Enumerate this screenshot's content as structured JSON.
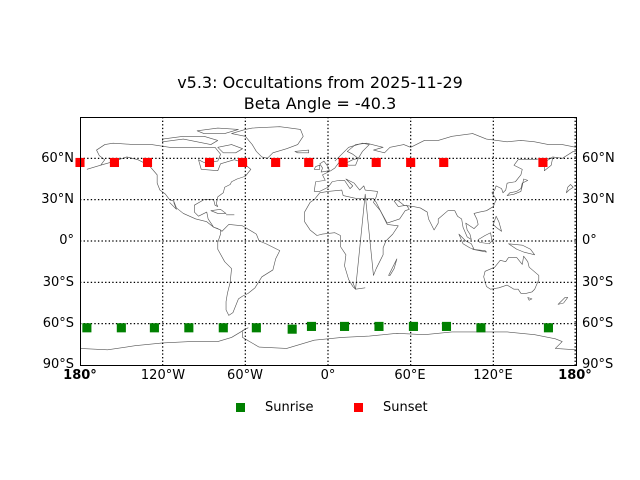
{
  "chart_data": {
    "type": "scatter",
    "title": "v5.3: Occultations from 2025-11-29",
    "subtitle": "Beta Angle = -40.3",
    "xlabel": "",
    "ylabel": "",
    "xlim": [
      -180,
      180
    ],
    "ylim": [
      -90,
      90
    ],
    "grid": true,
    "projection": "cylindrical world map with coastlines",
    "x_ticks": [
      "180°",
      "120°W",
      "60°W",
      "0°",
      "60°E",
      "120°E",
      "180°"
    ],
    "y_ticks": [
      "60°N",
      "30°N",
      "0°",
      "30°S",
      "60°S",
      "90°S"
    ],
    "legend_position": "below plot",
    "series": [
      {
        "name": "Sunrise",
        "color": "#008000",
        "marker": "square",
        "points": [
          {
            "lon": -175,
            "lat": -63
          },
          {
            "lon": -150,
            "lat": -63
          },
          {
            "lon": -126,
            "lat": -63
          },
          {
            "lon": -101,
            "lat": -63
          },
          {
            "lon": -76,
            "lat": -63
          },
          {
            "lon": -52,
            "lat": -63
          },
          {
            "lon": -26,
            "lat": -64
          },
          {
            "lon": -12,
            "lat": -62
          },
          {
            "lon": 12,
            "lat": -62
          },
          {
            "lon": 37,
            "lat": -62
          },
          {
            "lon": 62,
            "lat": -62
          },
          {
            "lon": 86,
            "lat": -62
          },
          {
            "lon": 111,
            "lat": -63
          },
          {
            "lon": 160,
            "lat": -63
          }
        ]
      },
      {
        "name": "Sunset",
        "color": "#ff0000",
        "marker": "square",
        "points": [
          {
            "lon": -180,
            "lat": 57
          },
          {
            "lon": -155,
            "lat": 57
          },
          {
            "lon": -131,
            "lat": 57
          },
          {
            "lon": -86,
            "lat": 57
          },
          {
            "lon": -62,
            "lat": 57
          },
          {
            "lon": -38,
            "lat": 57
          },
          {
            "lon": -14,
            "lat": 57
          },
          {
            "lon": 11,
            "lat": 57
          },
          {
            "lon": 35,
            "lat": 57
          },
          {
            "lon": 60,
            "lat": 57
          },
          {
            "lon": 84,
            "lat": 57
          },
          {
            "lon": 156,
            "lat": 57
          }
        ]
      }
    ]
  },
  "title": {
    "line1": "v5.3: Occultations from 2025-11-29",
    "line2": "Beta Angle = -40.3"
  },
  "axes": {
    "y_left": [
      "60°N",
      "30°N",
      "0°",
      "30°S",
      "60°S",
      "90°S"
    ],
    "y_right": [
      "60°N",
      "30°N",
      "0°",
      "30°S",
      "60°S",
      "90°S"
    ],
    "x": [
      "180°",
      "120°W",
      "60°W",
      "0°",
      "60°E",
      "120°E",
      "180°"
    ]
  },
  "legend": {
    "sunrise": "Sunrise",
    "sunset": "Sunset"
  }
}
